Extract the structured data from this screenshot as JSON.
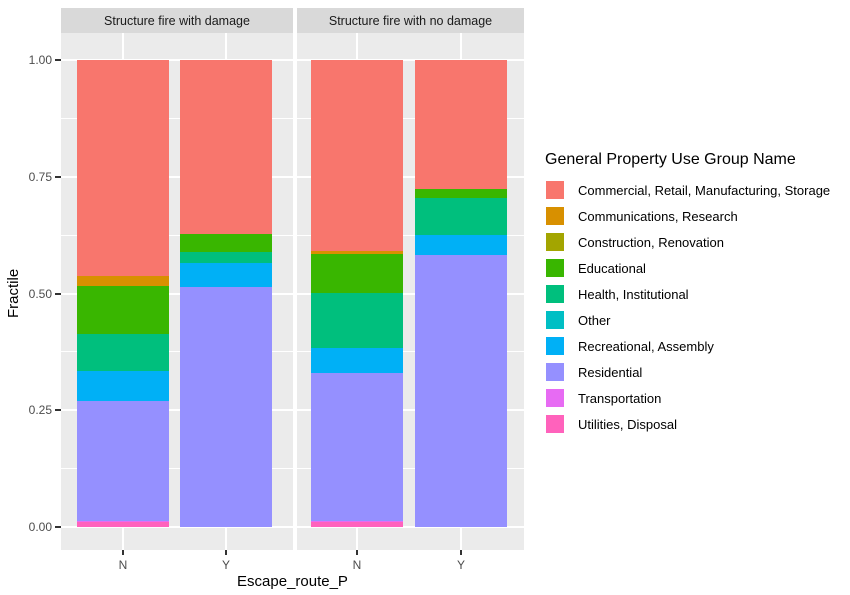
{
  "figure": {
    "background": "#FFFFFF",
    "panel_background": "#EBEBEB",
    "strip_background": "#D9D9D9",
    "gridline_color": "#FFFFFF",
    "tick_color": "#333333",
    "tick_label_color": "#4D4D4D"
  },
  "chart_data": {
    "type": "bar",
    "variant": "stacked-100pct-faceted",
    "title": "",
    "xlabel": "Escape_route_P",
    "ylabel": "Fractile",
    "ylim": [
      0,
      1
    ],
    "grid": "on",
    "y_ticks": [
      {
        "label": "1.00",
        "value": 1.0
      },
      {
        "label": "0.75",
        "value": 0.75
      },
      {
        "label": "0.50",
        "value": 0.5
      },
      {
        "label": "0.25",
        "value": 0.25
      },
      {
        "label": "0.00",
        "value": 0.0
      }
    ],
    "categories": [
      "N",
      "Y"
    ],
    "stack_order": "first listed series at top of bar, last listed at bottom",
    "legend": {
      "title": "General Property Use Group Name",
      "position": "right",
      "items": [
        {
          "label": "Commercial, Retail, Manufacturing, Storage",
          "color": "#F8766D"
        },
        {
          "label": "Communications, Research",
          "color": "#D89000"
        },
        {
          "label": "Construction, Renovation",
          "color": "#A3A500"
        },
        {
          "label": "Educational",
          "color": "#39B600"
        },
        {
          "label": "Health, Institutional",
          "color": "#00BF7D"
        },
        {
          "label": "Other",
          "color": "#00BFC4"
        },
        {
          "label": "Recreational, Assembly",
          "color": "#00B0F6"
        },
        {
          "label": "Residential",
          "color": "#9590FF"
        },
        {
          "label": "Transportation",
          "color": "#E76BF3"
        },
        {
          "label": "Utilities, Disposal",
          "color": "#FF62BC"
        }
      ]
    },
    "facets": [
      {
        "label": "Structure fire with damage",
        "series": [
          {
            "name": "Commercial, Retail, Manufacturing, Storage",
            "values": [
              0.463,
              0.373
            ]
          },
          {
            "name": "Communications, Research",
            "values": [
              0.02,
              0.0
            ]
          },
          {
            "name": "Construction, Renovation",
            "values": [
              0.0,
              0.0
            ]
          },
          {
            "name": "Educational",
            "values": [
              0.103,
              0.038
            ]
          },
          {
            "name": "Health, Institutional",
            "values": [
              0.081,
              0.024
            ]
          },
          {
            "name": "Other",
            "values": [
              0.0,
              0.0
            ]
          },
          {
            "name": "Recreational, Assembly",
            "values": [
              0.063,
              0.051
            ]
          },
          {
            "name": "Residential",
            "values": [
              0.258,
              0.514
            ]
          },
          {
            "name": "Transportation",
            "values": [
              0.002,
              0.0
            ]
          },
          {
            "name": "Utilities, Disposal",
            "values": [
              0.01,
              0.0
            ]
          }
        ]
      },
      {
        "label": "Structure fire with no damage",
        "series": [
          {
            "name": "Commercial, Retail, Manufacturing, Storage",
            "values": [
              0.409,
              0.276
            ]
          },
          {
            "name": "Communications, Research",
            "values": [
              0.006,
              0.0
            ]
          },
          {
            "name": "Construction, Renovation",
            "values": [
              0.0,
              0.0
            ]
          },
          {
            "name": "Educational",
            "values": [
              0.084,
              0.02
            ]
          },
          {
            "name": "Health, Institutional",
            "values": [
              0.118,
              0.079
            ]
          },
          {
            "name": "Other",
            "values": [
              0.0,
              0.0
            ]
          },
          {
            "name": "Recreational, Assembly",
            "values": [
              0.053,
              0.043
            ]
          },
          {
            "name": "Residential",
            "values": [
              0.318,
              0.582
            ]
          },
          {
            "name": "Transportation",
            "values": [
              0.002,
              0.0
            ]
          },
          {
            "name": "Utilities, Disposal",
            "values": [
              0.01,
              0.0
            ]
          }
        ]
      }
    ]
  }
}
